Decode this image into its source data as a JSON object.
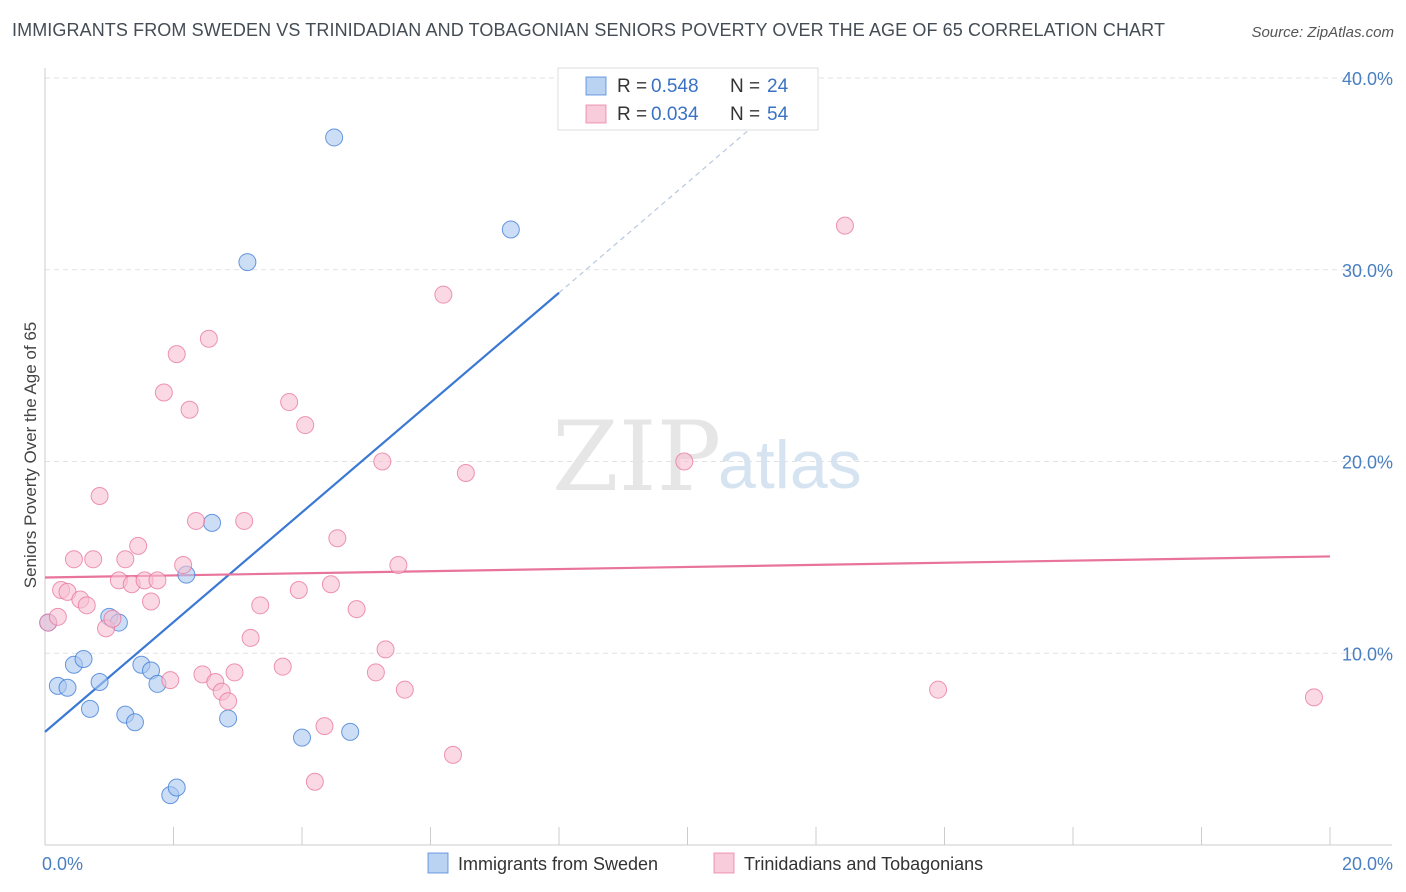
{
  "header": {
    "title": "IMMIGRANTS FROM SWEDEN VS TRINIDADIAN AND TOBAGONIAN SENIORS POVERTY OVER THE AGE OF 65 CORRELATION CHART",
    "source": "Source: ZipAtlas.com"
  },
  "watermark": {
    "zip": "ZIP",
    "atlas": "atlas"
  },
  "chart_data": {
    "type": "scatter",
    "title": "IMMIGRANTS FROM SWEDEN VS TRINIDADIAN AND TOBAGONIAN SENIORS POVERTY OVER THE AGE OF 65 CORRELATION CHART",
    "xlabel": "",
    "ylabel": "Seniors Poverty Over the Age of 65",
    "xlim": [
      0,
      20
    ],
    "ylim": [
      0,
      40
    ],
    "x_tick_labels": [
      "0.0%",
      "20.0%"
    ],
    "y_ticks": [
      10,
      20,
      30,
      40
    ],
    "y_tick_labels": [
      "10.0%",
      "20.0%",
      "30.0%",
      "40.0%"
    ],
    "grid": true,
    "legend_position": "top-center",
    "colors": {
      "blue": "#3a78d4",
      "pink": "#e8739b",
      "blue_fill": "#aac8f0",
      "pink_fill": "#f6bfd2"
    },
    "legend": [
      {
        "r_label": "R =",
        "r_value": "0.548",
        "n_label": "N =",
        "n_value": "24"
      },
      {
        "r_label": "R =",
        "r_value": "0.034",
        "n_label": "N =",
        "n_value": "54"
      }
    ],
    "series": [
      {
        "name": "Immigrants from Sweden",
        "color": "blue",
        "points": [
          [
            0.05,
            11.6
          ],
          [
            0.2,
            8.3
          ],
          [
            0.35,
            8.2
          ],
          [
            0.45,
            9.4
          ],
          [
            0.6,
            9.7
          ],
          [
            0.7,
            7.1
          ],
          [
            0.85,
            8.5
          ],
          [
            1.0,
            11.9
          ],
          [
            1.15,
            11.6
          ],
          [
            1.25,
            6.8
          ],
          [
            1.4,
            6.4
          ],
          [
            1.5,
            9.4
          ],
          [
            1.65,
            9.1
          ],
          [
            1.75,
            8.4
          ],
          [
            1.95,
            2.6
          ],
          [
            2.05,
            3.0
          ],
          [
            2.2,
            14.1
          ],
          [
            2.6,
            16.8
          ],
          [
            2.85,
            6.6
          ],
          [
            3.15,
            30.4
          ],
          [
            4.0,
            5.6
          ],
          [
            4.5,
            36.9
          ],
          [
            4.75,
            5.9
          ],
          [
            7.25,
            32.1
          ]
        ],
        "trend": {
          "x": [
            0,
            8.0
          ],
          "y": [
            5.9,
            28.8
          ],
          "dashed_x": [
            8.0,
            12.0
          ],
          "dashed_y": [
            28.8,
            40.3
          ]
        }
      },
      {
        "name": "Trinidadians and Tobagonians",
        "color": "pink",
        "points": [
          [
            0.05,
            11.6
          ],
          [
            0.2,
            11.9
          ],
          [
            0.25,
            13.3
          ],
          [
            0.35,
            13.2
          ],
          [
            0.45,
            14.9
          ],
          [
            0.55,
            12.8
          ],
          [
            0.65,
            12.5
          ],
          [
            0.75,
            14.9
          ],
          [
            0.85,
            18.2
          ],
          [
            0.95,
            11.3
          ],
          [
            1.05,
            11.8
          ],
          [
            1.15,
            13.8
          ],
          [
            1.25,
            14.9
          ],
          [
            1.35,
            13.6
          ],
          [
            1.45,
            15.6
          ],
          [
            1.55,
            13.8
          ],
          [
            1.65,
            12.7
          ],
          [
            1.75,
            13.8
          ],
          [
            1.85,
            23.6
          ],
          [
            1.95,
            8.6
          ],
          [
            2.05,
            25.6
          ],
          [
            2.15,
            14.6
          ],
          [
            2.25,
            22.7
          ],
          [
            2.35,
            16.9
          ],
          [
            2.45,
            8.9
          ],
          [
            2.55,
            26.4
          ],
          [
            2.65,
            8.5
          ],
          [
            2.75,
            8.0
          ],
          [
            2.85,
            7.5
          ],
          [
            2.95,
            9.0
          ],
          [
            3.1,
            16.9
          ],
          [
            3.2,
            10.8
          ],
          [
            3.35,
            12.5
          ],
          [
            3.7,
            9.3
          ],
          [
            3.8,
            23.1
          ],
          [
            3.95,
            13.3
          ],
          [
            4.05,
            21.9
          ],
          [
            4.2,
            3.3
          ],
          [
            4.35,
            6.2
          ],
          [
            4.45,
            13.6
          ],
          [
            4.55,
            16.0
          ],
          [
            4.85,
            12.3
          ],
          [
            5.15,
            9.0
          ],
          [
            5.25,
            20.0
          ],
          [
            5.3,
            10.2
          ],
          [
            5.5,
            14.6
          ],
          [
            5.6,
            8.1
          ],
          [
            6.2,
            28.7
          ],
          [
            6.35,
            4.7
          ],
          [
            6.55,
            19.4
          ],
          [
            9.95,
            20.0
          ],
          [
            12.45,
            32.3
          ],
          [
            13.9,
            8.1
          ],
          [
            19.75,
            7.7
          ]
        ],
        "trend": {
          "x": [
            0,
            20
          ],
          "y": [
            13.95,
            15.05
          ]
        }
      }
    ]
  },
  "bottom_legend": [
    {
      "label": "Immigrants from Sweden",
      "color": "blue"
    },
    {
      "label": "Trinidadians and Tobagonians",
      "color": "pink"
    }
  ]
}
